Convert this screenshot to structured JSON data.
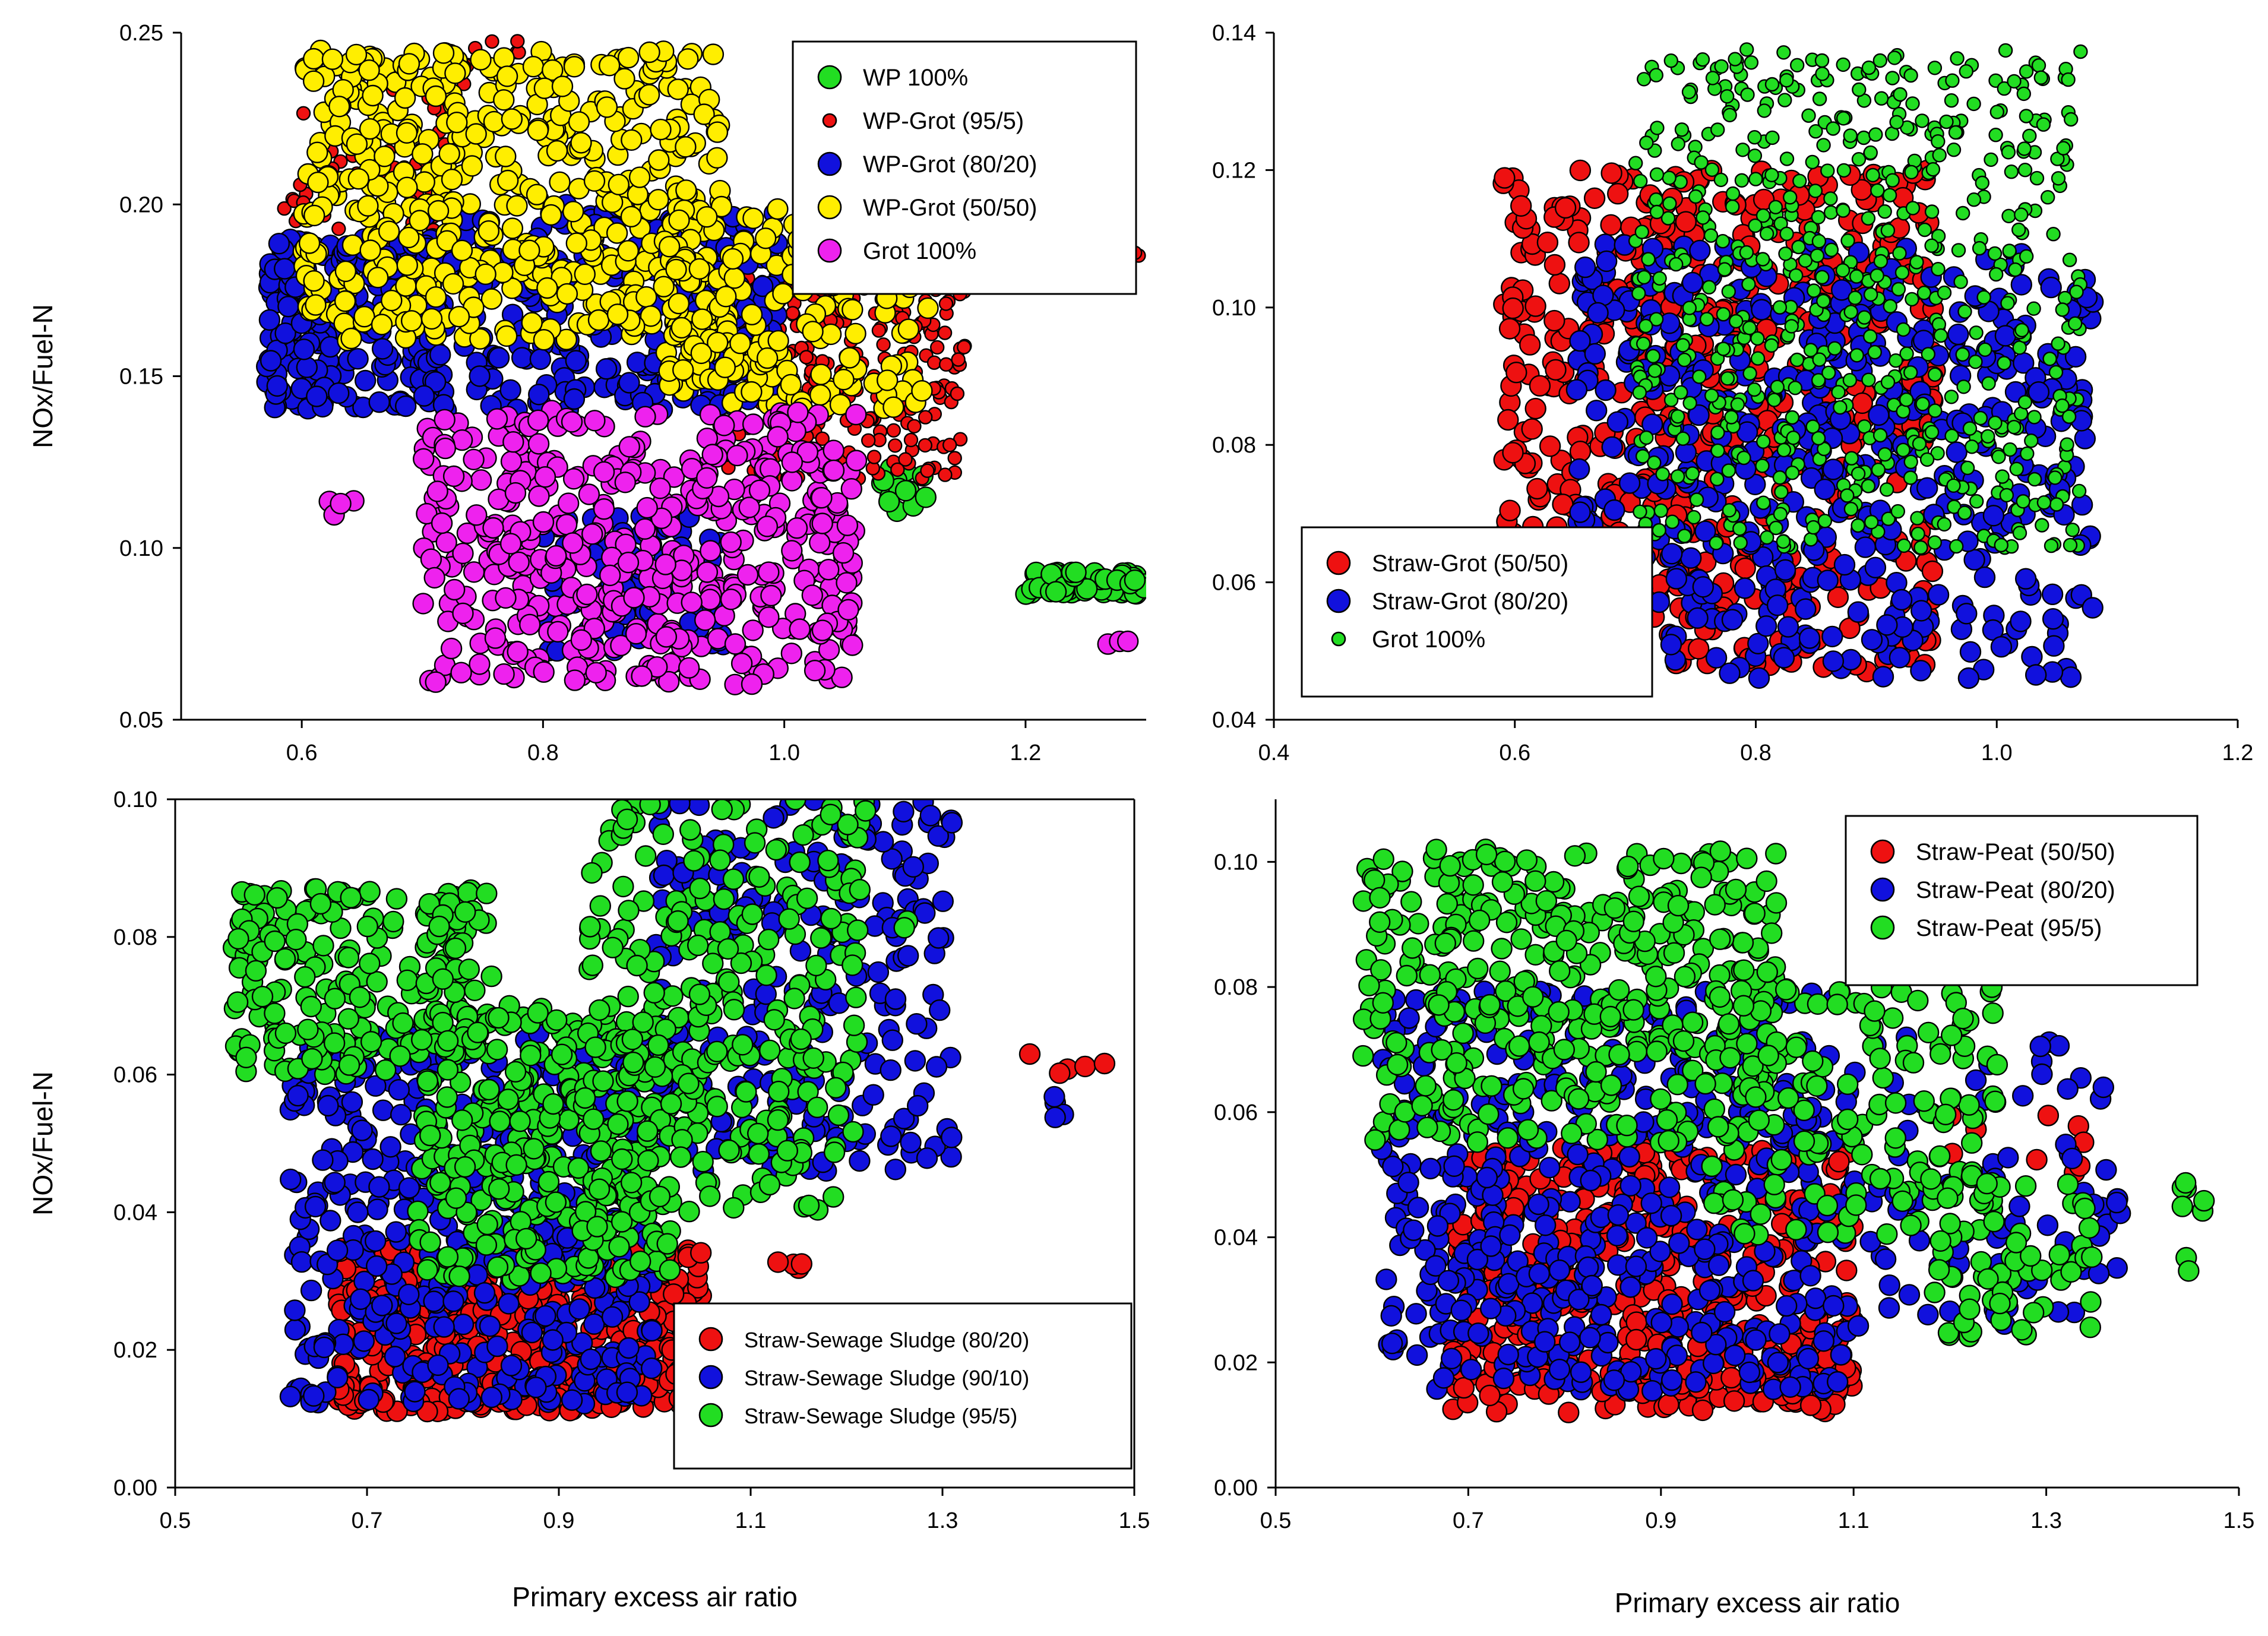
{
  "figure": {
    "background": "#ffffff"
  },
  "chart_data": [
    {
      "type": "scatter",
      "panel": "top-left",
      "xlabel": "",
      "ylabel": "NOx/Fuel-N",
      "xlim": [
        0.5,
        1.3
      ],
      "ylim": [
        0.05,
        0.25
      ],
      "xticks": [
        "0.6",
        "0.8",
        "1.0",
        "1.2"
      ],
      "xtick_values": [
        0.6,
        0.8,
        1.0,
        1.2
      ],
      "yticks": [
        "0.05",
        "0.10",
        "0.15",
        "0.20",
        "0.25"
      ],
      "ytick_values": [
        0.05,
        0.1,
        0.15,
        0.2,
        0.25
      ],
      "legend_position": "top-right",
      "legend": [
        "WP 100%",
        "WP-Grot (95/5)",
        "WP-Grot (80/20)",
        "WP-Grot (50/50)",
        "Grot 100%"
      ],
      "series": [
        {
          "name": "WP 100%",
          "color": "#22dd22",
          "marker": "large",
          "clusters": [
            {
              "x": [
                1.2,
                1.3
              ],
              "y": [
                0.086,
                0.093
              ],
              "n": 70
            },
            {
              "x": [
                1.08,
                1.12
              ],
              "y": [
                0.105,
                0.125
              ],
              "n": 15
            }
          ]
        },
        {
          "name": "WP-Grot (95/5)",
          "color": "#ee1111",
          "marker": "small",
          "clusters": [
            {
              "x": [
                0.95,
                1.15
              ],
              "y": [
                0.12,
                0.18
              ],
              "n": 260
            },
            {
              "x": [
                0.58,
                0.72
              ],
              "y": [
                0.18,
                0.235
              ],
              "n": 60
            },
            {
              "x": [
                0.72,
                0.78
              ],
              "y": [
                0.235,
                0.25
              ],
              "n": 12
            },
            {
              "x": [
                1.28,
                1.3
              ],
              "y": [
                0.184,
                0.188
              ],
              "n": 2
            }
          ]
        },
        {
          "name": "WP-Grot (80/20)",
          "color": "#1111dd",
          "marker": "large",
          "clusters": [
            {
              "x": [
                0.57,
                0.72
              ],
              "y": [
                0.14,
                0.19
              ],
              "n": 220
            },
            {
              "x": [
                0.7,
                1.0
              ],
              "y": [
                0.14,
                0.2
              ],
              "n": 260
            },
            {
              "x": [
                0.8,
                0.95
              ],
              "y": [
                0.07,
                0.11
              ],
              "n": 90
            }
          ]
        },
        {
          "name": "WP-Grot (50/50)",
          "color": "#ffee00",
          "marker": "large",
          "clusters": [
            {
              "x": [
                0.6,
                0.95
              ],
              "y": [
                0.16,
                0.245
              ],
              "n": 520
            },
            {
              "x": [
                0.9,
                1.12
              ],
              "y": [
                0.14,
                0.2
              ],
              "n": 180
            }
          ]
        },
        {
          "name": "Grot 100%",
          "color": "#ee22ee",
          "marker": "large",
          "clusters": [
            {
              "x": [
                0.7,
                1.06
              ],
              "y": [
                0.06,
                0.14
              ],
              "n": 480
            },
            {
              "x": [
                0.62,
                0.65
              ],
              "y": [
                0.108,
                0.114
              ],
              "n": 4
            },
            {
              "x": [
                1.26,
                1.29
              ],
              "y": [
                0.072,
                0.076
              ],
              "n": 3
            }
          ]
        }
      ]
    },
    {
      "type": "scatter",
      "panel": "top-right",
      "xlabel": "",
      "ylabel": "",
      "xlim": [
        0.4,
        1.2
      ],
      "ylim": [
        0.04,
        0.14
      ],
      "xticks": [
        "0.4",
        "0.6",
        "0.8",
        "1.0",
        "1.2"
      ],
      "xtick_values": [
        0.4,
        0.6,
        0.8,
        1.0,
        1.2
      ],
      "yticks": [
        "0.04",
        "0.06",
        "0.08",
        "0.10",
        "0.12",
        "0.14"
      ],
      "ytick_values": [
        0.04,
        0.06,
        0.08,
        0.1,
        0.12,
        0.14
      ],
      "legend_position": "bottom-left",
      "legend": [
        "Straw-Grot (50/50)",
        "Straw-Grot (80/20)",
        "Grot 100%"
      ],
      "series": [
        {
          "name": "Straw-Grot (50/50)",
          "color": "#ee1111",
          "marker": "large",
          "clusters": [
            {
              "x": [
                0.59,
                0.95
              ],
              "y": [
                0.047,
                0.12
              ],
              "n": 560
            }
          ]
        },
        {
          "name": "Straw-Grot (80/20)",
          "color": "#1111dd",
          "marker": "large",
          "clusters": [
            {
              "x": [
                0.65,
                1.08
              ],
              "y": [
                0.046,
                0.11
              ],
              "n": 520
            }
          ]
        },
        {
          "name": "Grot 100%",
          "color": "#22dd22",
          "marker": "small",
          "clusters": [
            {
              "x": [
                0.7,
                1.07
              ],
              "y": [
                0.065,
                0.138
              ],
              "n": 650
            }
          ]
        }
      ]
    },
    {
      "type": "scatter",
      "panel": "bottom-left",
      "xlabel": "Primary excess air ratio",
      "ylabel": "NOx/Fuel-N",
      "xlim": [
        0.5,
        1.5
      ],
      "ylim": [
        0.0,
        0.1
      ],
      "xticks": [
        "0.5",
        "0.7",
        "0.9",
        "1.1",
        "1.3",
        "1.5"
      ],
      "xtick_values": [
        0.5,
        0.7,
        0.9,
        1.1,
        1.3,
        1.5
      ],
      "yticks": [
        "0.00",
        "0.02",
        "0.04",
        "0.06",
        "0.08",
        "0.10"
      ],
      "ytick_values": [
        0.0,
        0.02,
        0.04,
        0.06,
        0.08,
        0.1
      ],
      "legend_position": "bottom-right",
      "legend": [
        "Straw-Sewage Sludge (80/20)",
        "Straw-Sewage Sludge (90/10)",
        "Straw-Sewage Sludge (95/5)"
      ],
      "series": [
        {
          "name": "Straw-Sewage Sludge (80/20)",
          "color": "#ee1111",
          "marker": "large",
          "clusters": [
            {
              "x": [
                0.67,
                1.05
              ],
              "y": [
                0.011,
                0.035
              ],
              "n": 500
            },
            {
              "x": [
                1.12,
                1.16
              ],
              "y": [
                0.03,
                0.034
              ],
              "n": 4
            },
            {
              "x": [
                1.38,
                1.47
              ],
              "y": [
                0.06,
                0.063
              ],
              "n": 5
            }
          ]
        },
        {
          "name": "Straw-Sewage Sludge (90/10)",
          "color": "#1111dd",
          "marker": "large",
          "clusters": [
            {
              "x": [
                0.62,
                1.0
              ],
              "y": [
                0.012,
                0.066
              ],
              "n": 500
            },
            {
              "x": [
                1.0,
                1.31
              ],
              "y": [
                0.045,
                0.1
              ],
              "n": 260
            },
            {
              "x": [
                1.41,
                1.44
              ],
              "y": [
                0.053,
                0.057
              ],
              "n": 4
            }
          ]
        },
        {
          "name": "Straw-Sewage Sludge (95/5)",
          "color": "#22dd22",
          "marker": "large",
          "clusters": [
            {
              "x": [
                0.56,
                0.83
              ],
              "y": [
                0.06,
                0.087
              ],
              "n": 220
            },
            {
              "x": [
                0.75,
                1.02
              ],
              "y": [
                0.03,
                0.07
              ],
              "n": 320
            },
            {
              "x": [
                0.93,
                1.22
              ],
              "y": [
                0.04,
                0.1
              ],
              "n": 280
            },
            {
              "x": [
                1.26,
                1.28
              ],
              "y": [
                0.08,
                0.083
              ],
              "n": 2
            }
          ]
        }
      ]
    },
    {
      "type": "scatter",
      "panel": "bottom-right",
      "xlabel": "Primary excess air ratio",
      "ylabel": "",
      "xlim": [
        0.5,
        1.5
      ],
      "ylim": [
        0.0,
        0.11
      ],
      "xticks": [
        "0.5",
        "0.7",
        "0.9",
        "1.1",
        "1.3",
        "1.5"
      ],
      "xtick_values": [
        0.5,
        0.7,
        0.9,
        1.1,
        1.3,
        1.5
      ],
      "yticks": [
        "0.00",
        "0.02",
        "0.04",
        "0.06",
        "0.08",
        "0.10"
      ],
      "ytick_values": [
        0.0,
        0.02,
        0.04,
        0.06,
        0.08,
        0.1
      ],
      "legend_position": "top-right",
      "legend": [
        "Straw-Peat (50/50)",
        "Straw-Peat (80/20)",
        "Straw-Peat (95/5)"
      ],
      "series": [
        {
          "name": "Straw-Peat (50/50)",
          "color": "#ee1111",
          "marker": "large",
          "clusters": [
            {
              "x": [
                0.68,
                1.1
              ],
              "y": [
                0.012,
                0.055
              ],
              "n": 480
            },
            {
              "x": [
                1.2,
                1.34
              ],
              "y": [
                0.05,
                0.06
              ],
              "n": 10
            }
          ]
        },
        {
          "name": "Straw-Peat (80/20)",
          "color": "#1111dd",
          "marker": "large",
          "clusters": [
            {
              "x": [
                0.61,
                1.1
              ],
              "y": [
                0.015,
                0.08
              ],
              "n": 520
            },
            {
              "x": [
                1.1,
                1.38
              ],
              "y": [
                0.025,
                0.073
              ],
              "n": 90
            }
          ]
        },
        {
          "name": "Straw-Peat (95/5)",
          "color": "#22dd22",
          "marker": "large",
          "clusters": [
            {
              "x": [
                0.59,
                1.02
              ],
              "y": [
                0.055,
                0.102
              ],
              "n": 380
            },
            {
              "x": [
                0.95,
                1.25
              ],
              "y": [
                0.04,
                0.08
              ],
              "n": 160
            },
            {
              "x": [
                1.18,
                1.35
              ],
              "y": [
                0.024,
                0.05
              ],
              "n": 60
            },
            {
              "x": [
                1.44,
                1.47
              ],
              "y": [
                0.032,
                0.05
              ],
              "n": 8
            }
          ]
        }
      ]
    }
  ]
}
